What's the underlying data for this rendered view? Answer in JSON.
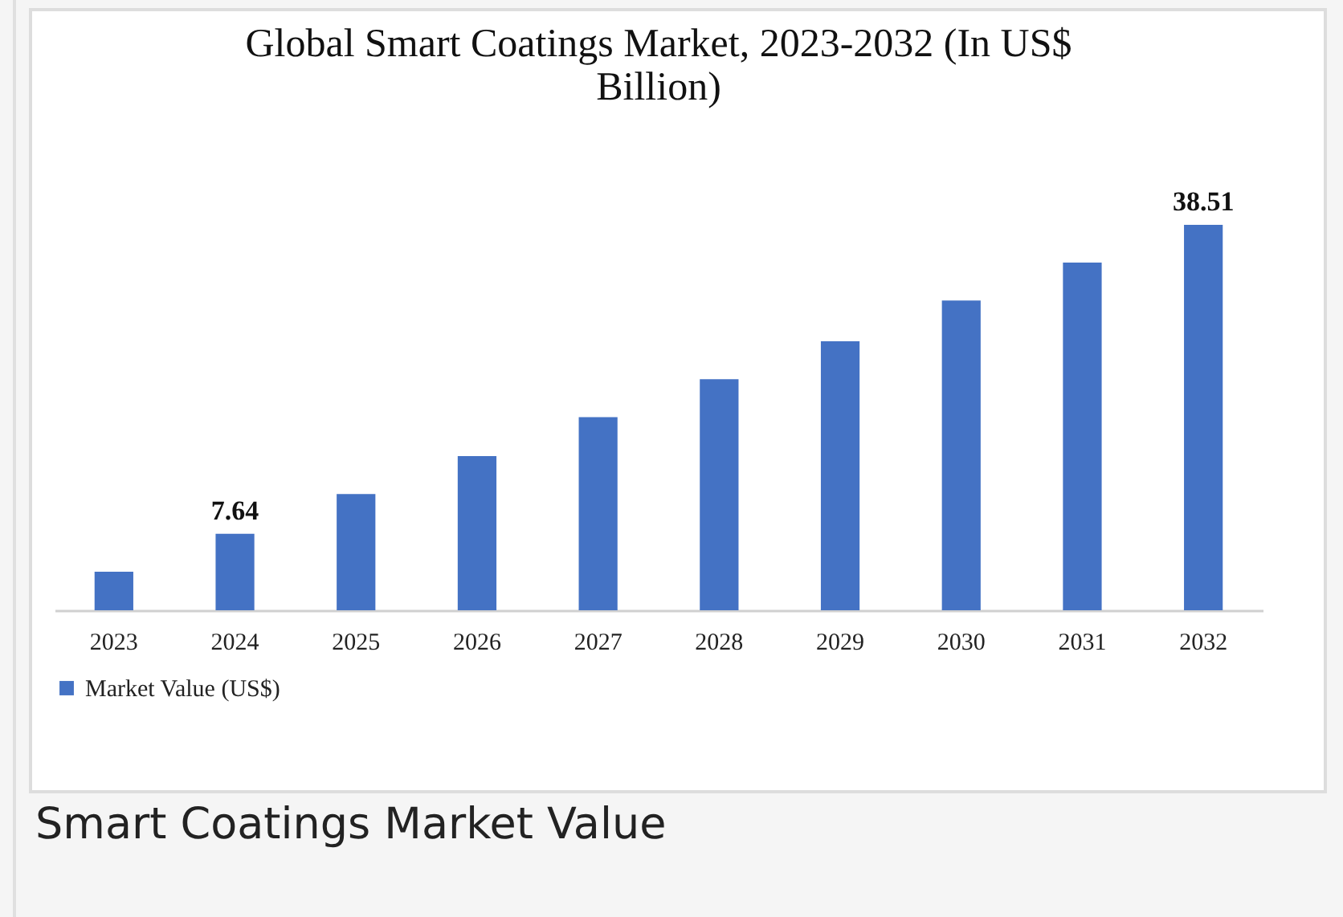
{
  "chart_data": {
    "type": "bar",
    "title": "Global Smart Coatings Market, 2023-2032 (In US$ Billion)",
    "categories": [
      "2023",
      "2024",
      "2025",
      "2026",
      "2027",
      "2028",
      "2029",
      "2030",
      "2031",
      "2032"
    ],
    "series": [
      {
        "name": "Market Value (US$)",
        "color": "#4472c4",
        "values": [
          3.85,
          7.64,
          11.62,
          15.41,
          19.29,
          23.08,
          26.87,
          30.94,
          34.73,
          38.51
        ],
        "value_labels": [
          null,
          "7.64",
          null,
          null,
          null,
          null,
          null,
          null,
          null,
          "38.51"
        ]
      }
    ],
    "legend": "bottom",
    "grid": false,
    "annotations": [
      "Smart Coatings Market Value"
    ]
  }
}
